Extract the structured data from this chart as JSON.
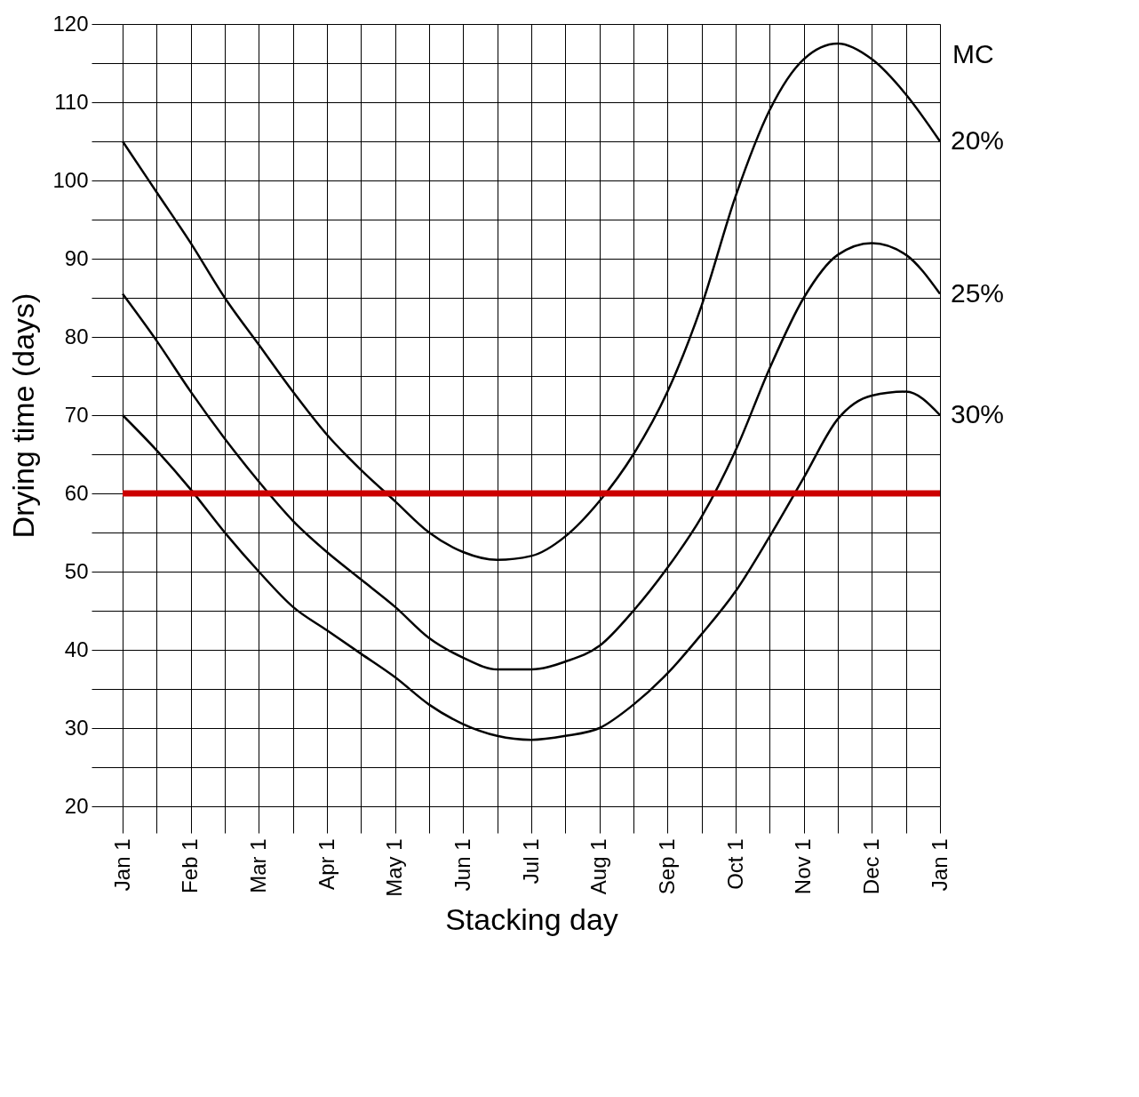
{
  "chart_data": {
    "type": "line",
    "xlabel": "Stacking day",
    "ylabel": "Drying time (days)",
    "legend_title": "MC",
    "categories": [
      "Jan 1",
      null,
      "Feb 1",
      null,
      "Mar 1",
      null,
      "Apr 1",
      null,
      "May 1",
      null,
      "Jun 1",
      null,
      "Jul 1",
      null,
      "Aug 1",
      null,
      "Sep 1",
      null,
      "Oct 1",
      null,
      "Nov 1",
      null,
      "Dec 1",
      null,
      "Jan 1"
    ],
    "series": [
      {
        "name": "20%",
        "color": "#000000",
        "values": [
          105,
          98.5,
          92,
          85,
          79,
          73,
          67.5,
          63,
          59,
          55,
          52.5,
          51.5,
          52,
          54.5,
          59,
          65,
          73,
          84,
          98,
          109,
          115.5,
          117.5,
          115.5,
          111,
          105
        ]
      },
      {
        "name": "25%",
        "color": "#000000",
        "values": [
          85.5,
          79.5,
          73,
          67,
          61.5,
          56.5,
          52.5,
          49,
          45.5,
          41.5,
          39,
          37.5,
          37.5,
          38.5,
          40.5,
          45,
          50.5,
          57,
          65.5,
          76,
          85,
          90.5,
          92,
          90.5,
          85.5
        ]
      },
      {
        "name": "30%",
        "color": "#000000",
        "values": [
          70,
          65.5,
          60.5,
          55,
          50,
          45.5,
          42.5,
          39.5,
          36.5,
          33,
          30.5,
          29,
          28.5,
          29,
          30,
          33,
          37,
          42,
          47.5,
          54.5,
          62,
          69.5,
          72.5,
          73,
          70
        ]
      }
    ],
    "ylim": [
      20,
      120
    ],
    "yticks": [
      20,
      {
        "value": 25,
        "label": null
      },
      30,
      {
        "value": 35,
        "label": null
      },
      40,
      {
        "value": 45,
        "label": null
      },
      50,
      {
        "value": 55,
        "label": null
      },
      60,
      {
        "value": 65,
        "label": null
      },
      70,
      {
        "value": 75,
        "label": null
      },
      80,
      {
        "value": 85,
        "label": null
      },
      90,
      {
        "value": 95,
        "label": null
      },
      100,
      {
        "value": 105,
        "label": null
      },
      110,
      {
        "value": 115,
        "label": null
      },
      120
    ],
    "ref_lines": [
      {
        "axis": "y",
        "value": 60,
        "color": "#cc0000"
      }
    ],
    "grid": true,
    "marker": "none",
    "line_style": "solid"
  }
}
